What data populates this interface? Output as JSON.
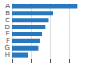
{
  "chart_data": {
    "type": "bar",
    "orientation": "horizontal",
    "categories": [
      "A",
      "B",
      "C",
      "D",
      "E",
      "F",
      "G",
      "H"
    ],
    "values": [
      344,
      212,
      190,
      175,
      155,
      145,
      138,
      80
    ],
    "color": "#2878c0",
    "xlim": [
      0,
      380
    ],
    "xticks": [
      0,
      100,
      200,
      300
    ],
    "grid": true,
    "tick_labels": "y"
  }
}
